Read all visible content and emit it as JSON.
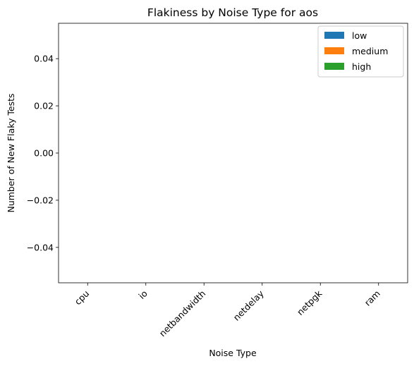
{
  "chart_data": {
    "type": "bar",
    "title": "Flakiness by Noise Type for aos",
    "xlabel": "Noise Type",
    "ylabel": "Number of New Flaky Tests",
    "categories": [
      "cpu",
      "io",
      "netbandwidth",
      "netdelay",
      "netpgk",
      "ram"
    ],
    "series": [
      {
        "name": "low",
        "color": "#1f77b4",
        "values": [
          0,
          0,
          0,
          0,
          0,
          0
        ]
      },
      {
        "name": "medium",
        "color": "#ff7f0e",
        "values": [
          0,
          0,
          0,
          0,
          0,
          0
        ]
      },
      {
        "name": "high",
        "color": "#2ca02c",
        "values": [
          0,
          0,
          0,
          0,
          0,
          0
        ]
      }
    ],
    "ylim": [
      -0.055,
      0.055
    ],
    "yticks": [
      -0.04,
      -0.02,
      0.0,
      0.02,
      0.04
    ],
    "ytick_labels": [
      "−0.04",
      "−0.02",
      "0.00",
      "0.02",
      "0.04"
    ],
    "legend_position": "top-right",
    "grid": false
  }
}
